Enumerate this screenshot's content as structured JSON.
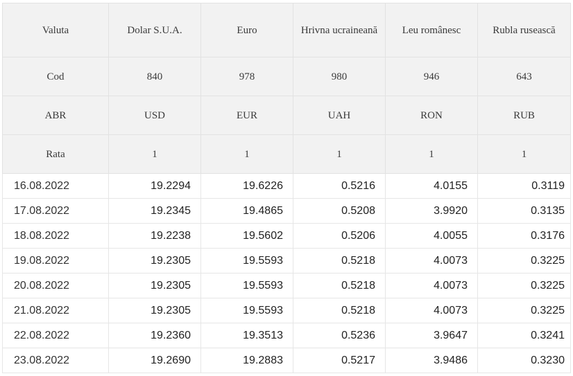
{
  "headers": {
    "name_row": [
      "Valuta",
      "Dolar S.U.A.",
      "Euro",
      "Hrivna ucraineană",
      "Leu românesc",
      "Rubla rusească"
    ],
    "cod_row": [
      "Cod",
      "840",
      "978",
      "980",
      "946",
      "643"
    ],
    "abr_row": [
      "ABR",
      "USD",
      "EUR",
      "UAH",
      "RON",
      "RUB"
    ],
    "rata_row": [
      "Rata",
      "1",
      "1",
      "1",
      "1",
      "1"
    ]
  },
  "rows": [
    [
      "16.08.2022",
      "19.2294",
      "19.6226",
      "0.5216",
      "4.0155",
      "0.3119"
    ],
    [
      "17.08.2022",
      "19.2345",
      "19.4865",
      "0.5208",
      "3.9920",
      "0.3135"
    ],
    [
      "18.08.2022",
      "19.2238",
      "19.5602",
      "0.5206",
      "4.0055",
      "0.3176"
    ],
    [
      "19.08.2022",
      "19.2305",
      "19.5593",
      "0.5218",
      "4.0073",
      "0.3225"
    ],
    [
      "20.08.2022",
      "19.2305",
      "19.5593",
      "0.5218",
      "4.0073",
      "0.3225"
    ],
    [
      "21.08.2022",
      "19.2305",
      "19.5593",
      "0.5218",
      "4.0073",
      "0.3225"
    ],
    [
      "22.08.2022",
      "19.2360",
      "19.3513",
      "0.5236",
      "3.9647",
      "0.3241"
    ],
    [
      "23.08.2022",
      "19.2690",
      "19.2883",
      "0.5217",
      "3.9486",
      "0.3230"
    ]
  ]
}
